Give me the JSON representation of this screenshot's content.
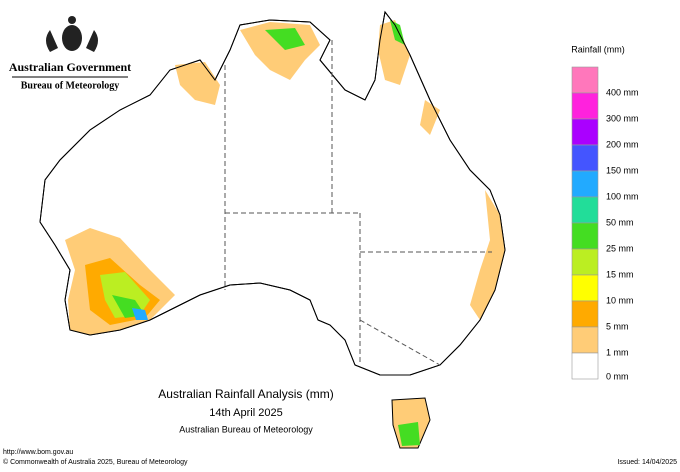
{
  "header": {
    "government": "Australian Government",
    "agency": "Bureau of Meteorology"
  },
  "legend": {
    "title": "Rainfall (mm)",
    "items": [
      {
        "label": null,
        "color": "#ff77bb"
      },
      {
        "label": "400 mm",
        "color": "#ff22dd"
      },
      {
        "label": "300 mm",
        "color": "#aa00ff"
      },
      {
        "label": "200 mm",
        "color": "#4455ff"
      },
      {
        "label": "150 mm",
        "color": "#22aaff"
      },
      {
        "label": "100 mm",
        "color": "#22dd99"
      },
      {
        "label": "50 mm",
        "color": "#44dd22"
      },
      {
        "label": "25 mm",
        "color": "#bbee22"
      },
      {
        "label": "15 mm",
        "color": "#ffff00"
      },
      {
        "label": "10 mm",
        "color": "#ffaa00"
      },
      {
        "label": "5 mm",
        "color": "#ffcc77"
      },
      {
        "label": "1 mm",
        "color": "#ffffff"
      }
    ],
    "last_label": "0 mm"
  },
  "title": {
    "line1": "Australian Rainfall Analysis (mm)",
    "line2": "14th April 2025",
    "line3": "Australian Bureau of Meteorology"
  },
  "footer": {
    "url": "http://www.bom.gov.au",
    "copyright": "© Commonwealth of Australia 2025, Bureau of Meteorology",
    "issued": "Issued: 14/04/2025"
  }
}
